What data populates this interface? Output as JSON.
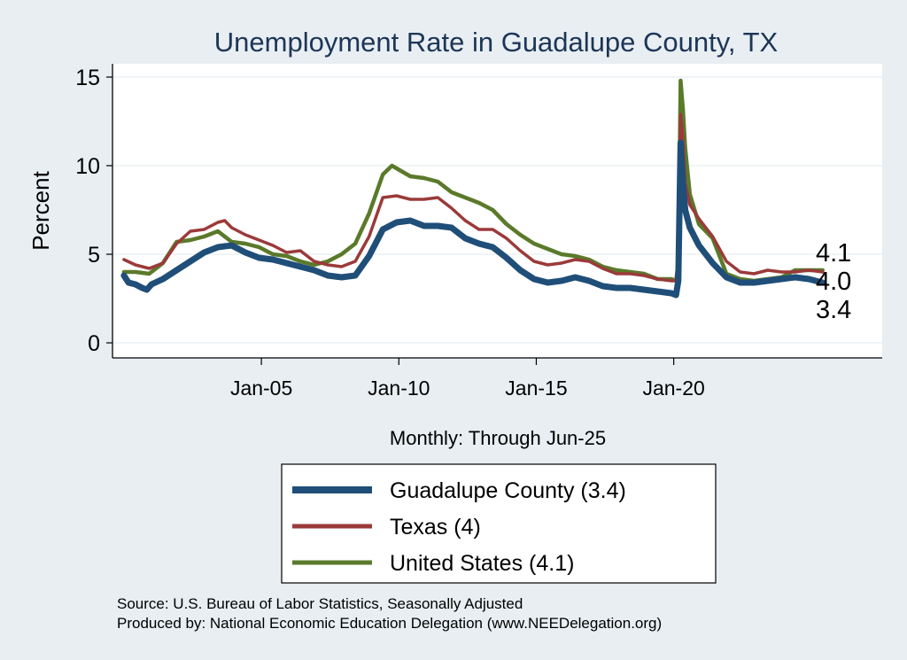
{
  "chart_data": {
    "type": "line",
    "title": "Unemployment Rate in Guadalupe  County, TX",
    "xlabel": "Monthly: Through Jun-25",
    "ylabel": "Percent",
    "ylim": [
      0,
      15
    ],
    "yticks": [
      "0",
      "5",
      "10",
      "15"
    ],
    "xticks": [
      {
        "date": "2005-01",
        "label": "Jan-05"
      },
      {
        "date": "2010-01",
        "label": "Jan-10"
      },
      {
        "date": "2015-01",
        "label": "Jan-15"
      },
      {
        "date": "2020-01",
        "label": "Jan-20"
      }
    ],
    "xrange": [
      "1999-08",
      "2027-08"
    ],
    "grid": "horizontal",
    "legend": "bottom",
    "end_labels": [
      "4.1",
      "4.0",
      "3.4"
    ],
    "series": [
      {
        "name": "Guadalupe  County (3.4)",
        "color": "#1f4e79",
        "points": [
          [
            "2000-01",
            3.8
          ],
          [
            "2000-03",
            3.4
          ],
          [
            "2000-06",
            3.3
          ],
          [
            "2000-09",
            3.1
          ],
          [
            "2000-11",
            3.0
          ],
          [
            "2001-01",
            3.3
          ],
          [
            "2001-06",
            3.6
          ],
          [
            "2001-12",
            4.1
          ],
          [
            "2002-06",
            4.6
          ],
          [
            "2002-12",
            5.1
          ],
          [
            "2003-06",
            5.4
          ],
          [
            "2003-12",
            5.5
          ],
          [
            "2004-06",
            5.1
          ],
          [
            "2004-12",
            4.8
          ],
          [
            "2005-06",
            4.7
          ],
          [
            "2005-12",
            4.5
          ],
          [
            "2006-06",
            4.3
          ],
          [
            "2006-12",
            4.1
          ],
          [
            "2007-06",
            3.8
          ],
          [
            "2007-12",
            3.7
          ],
          [
            "2008-06",
            3.8
          ],
          [
            "2008-12",
            4.9
          ],
          [
            "2009-06",
            6.4
          ],
          [
            "2009-12",
            6.8
          ],
          [
            "2010-06",
            6.9
          ],
          [
            "2010-12",
            6.6
          ],
          [
            "2011-06",
            6.6
          ],
          [
            "2011-12",
            6.5
          ],
          [
            "2012-06",
            5.9
          ],
          [
            "2012-12",
            5.6
          ],
          [
            "2013-06",
            5.4
          ],
          [
            "2013-12",
            4.8
          ],
          [
            "2014-06",
            4.1
          ],
          [
            "2014-12",
            3.6
          ],
          [
            "2015-06",
            3.4
          ],
          [
            "2015-12",
            3.5
          ],
          [
            "2016-06",
            3.7
          ],
          [
            "2016-12",
            3.5
          ],
          [
            "2017-06",
            3.2
          ],
          [
            "2017-12",
            3.1
          ],
          [
            "2018-06",
            3.1
          ],
          [
            "2018-12",
            3.0
          ],
          [
            "2019-06",
            2.9
          ],
          [
            "2019-12",
            2.8
          ],
          [
            "2020-02",
            2.7
          ],
          [
            "2020-03",
            3.5
          ],
          [
            "2020-04",
            11.3
          ],
          [
            "2020-05",
            9.0
          ],
          [
            "2020-06",
            7.5
          ],
          [
            "2020-08",
            6.5
          ],
          [
            "2020-12",
            5.5
          ],
          [
            "2021-06",
            4.5
          ],
          [
            "2021-12",
            3.7
          ],
          [
            "2022-06",
            3.4
          ],
          [
            "2022-12",
            3.4
          ],
          [
            "2023-06",
            3.5
          ],
          [
            "2023-12",
            3.6
          ],
          [
            "2024-06",
            3.7
          ],
          [
            "2024-12",
            3.6
          ],
          [
            "2025-06",
            3.4
          ]
        ]
      },
      {
        "name": "Texas (4)",
        "color": "#9b3a3a",
        "points": [
          [
            "2000-01",
            4.7
          ],
          [
            "2000-06",
            4.4
          ],
          [
            "2000-12",
            4.2
          ],
          [
            "2001-06",
            4.5
          ],
          [
            "2001-12",
            5.6
          ],
          [
            "2002-06",
            6.3
          ],
          [
            "2002-12",
            6.4
          ],
          [
            "2003-06",
            6.8
          ],
          [
            "2003-09",
            6.9
          ],
          [
            "2003-12",
            6.5
          ],
          [
            "2004-06",
            6.1
          ],
          [
            "2004-12",
            5.8
          ],
          [
            "2005-06",
            5.5
          ],
          [
            "2005-12",
            5.1
          ],
          [
            "2006-06",
            5.2
          ],
          [
            "2006-12",
            4.6
          ],
          [
            "2007-06",
            4.4
          ],
          [
            "2007-12",
            4.3
          ],
          [
            "2008-06",
            4.6
          ],
          [
            "2008-12",
            6.0
          ],
          [
            "2009-06",
            8.2
          ],
          [
            "2009-12",
            8.3
          ],
          [
            "2010-06",
            8.1
          ],
          [
            "2010-12",
            8.1
          ],
          [
            "2011-06",
            8.2
          ],
          [
            "2011-12",
            7.6
          ],
          [
            "2012-06",
            6.9
          ],
          [
            "2012-12",
            6.4
          ],
          [
            "2013-06",
            6.4
          ],
          [
            "2013-12",
            5.9
          ],
          [
            "2014-06",
            5.2
          ],
          [
            "2014-12",
            4.6
          ],
          [
            "2015-06",
            4.4
          ],
          [
            "2015-12",
            4.5
          ],
          [
            "2016-06",
            4.7
          ],
          [
            "2016-12",
            4.6
          ],
          [
            "2017-06",
            4.2
          ],
          [
            "2017-12",
            3.9
          ],
          [
            "2018-06",
            3.9
          ],
          [
            "2018-12",
            3.8
          ],
          [
            "2019-06",
            3.6
          ],
          [
            "2019-12",
            3.5
          ],
          [
            "2020-02",
            3.5
          ],
          [
            "2020-03",
            5.0
          ],
          [
            "2020-04",
            12.9
          ],
          [
            "2020-05",
            11.5
          ],
          [
            "2020-06",
            9.0
          ],
          [
            "2020-08",
            7.8
          ],
          [
            "2020-12",
            7.0
          ],
          [
            "2021-06",
            6.0
          ],
          [
            "2021-12",
            4.6
          ],
          [
            "2022-06",
            4.0
          ],
          [
            "2022-12",
            3.9
          ],
          [
            "2023-06",
            4.1
          ],
          [
            "2023-12",
            4.0
          ],
          [
            "2024-06",
            4.0
          ],
          [
            "2024-12",
            4.1
          ],
          [
            "2025-06",
            4.0
          ]
        ]
      },
      {
        "name": "United States (4.1)",
        "color": "#5a7a2a",
        "points": [
          [
            "2000-01",
            4.0
          ],
          [
            "2000-06",
            4.0
          ],
          [
            "2000-12",
            3.9
          ],
          [
            "2001-06",
            4.5
          ],
          [
            "2001-12",
            5.7
          ],
          [
            "2002-06",
            5.8
          ],
          [
            "2002-12",
            6.0
          ],
          [
            "2003-06",
            6.3
          ],
          [
            "2003-12",
            5.7
          ],
          [
            "2004-06",
            5.6
          ],
          [
            "2004-12",
            5.4
          ],
          [
            "2005-06",
            5.0
          ],
          [
            "2005-12",
            4.9
          ],
          [
            "2006-06",
            4.6
          ],
          [
            "2006-12",
            4.4
          ],
          [
            "2007-06",
            4.6
          ],
          [
            "2007-12",
            5.0
          ],
          [
            "2008-06",
            5.6
          ],
          [
            "2008-12",
            7.3
          ],
          [
            "2009-06",
            9.5
          ],
          [
            "2009-10",
            10.0
          ],
          [
            "2010-06",
            9.4
          ],
          [
            "2010-12",
            9.3
          ],
          [
            "2011-06",
            9.1
          ],
          [
            "2011-12",
            8.5
          ],
          [
            "2012-06",
            8.2
          ],
          [
            "2012-12",
            7.9
          ],
          [
            "2013-06",
            7.5
          ],
          [
            "2013-12",
            6.7
          ],
          [
            "2014-06",
            6.1
          ],
          [
            "2014-12",
            5.6
          ],
          [
            "2015-06",
            5.3
          ],
          [
            "2015-12",
            5.0
          ],
          [
            "2016-06",
            4.9
          ],
          [
            "2016-12",
            4.7
          ],
          [
            "2017-06",
            4.3
          ],
          [
            "2017-12",
            4.1
          ],
          [
            "2018-06",
            4.0
          ],
          [
            "2018-12",
            3.9
          ],
          [
            "2019-06",
            3.6
          ],
          [
            "2019-12",
            3.6
          ],
          [
            "2020-02",
            3.5
          ],
          [
            "2020-03",
            4.4
          ],
          [
            "2020-04",
            14.8
          ],
          [
            "2020-05",
            13.2
          ],
          [
            "2020-06",
            11.0
          ],
          [
            "2020-08",
            8.4
          ],
          [
            "2020-12",
            6.7
          ],
          [
            "2021-06",
            5.9
          ],
          [
            "2021-12",
            3.9
          ],
          [
            "2022-06",
            3.6
          ],
          [
            "2022-12",
            3.5
          ],
          [
            "2023-06",
            3.6
          ],
          [
            "2023-12",
            3.7
          ],
          [
            "2024-06",
            4.1
          ],
          [
            "2024-12",
            4.1
          ],
          [
            "2025-06",
            4.1
          ]
        ]
      }
    ]
  },
  "source_lines": [
    "Source: U.S. Bureau of Labor Statistics, Seasonally Adjusted",
    "Produced by: National Economic Education Delegation (www.NEEDelegation.org)"
  ]
}
